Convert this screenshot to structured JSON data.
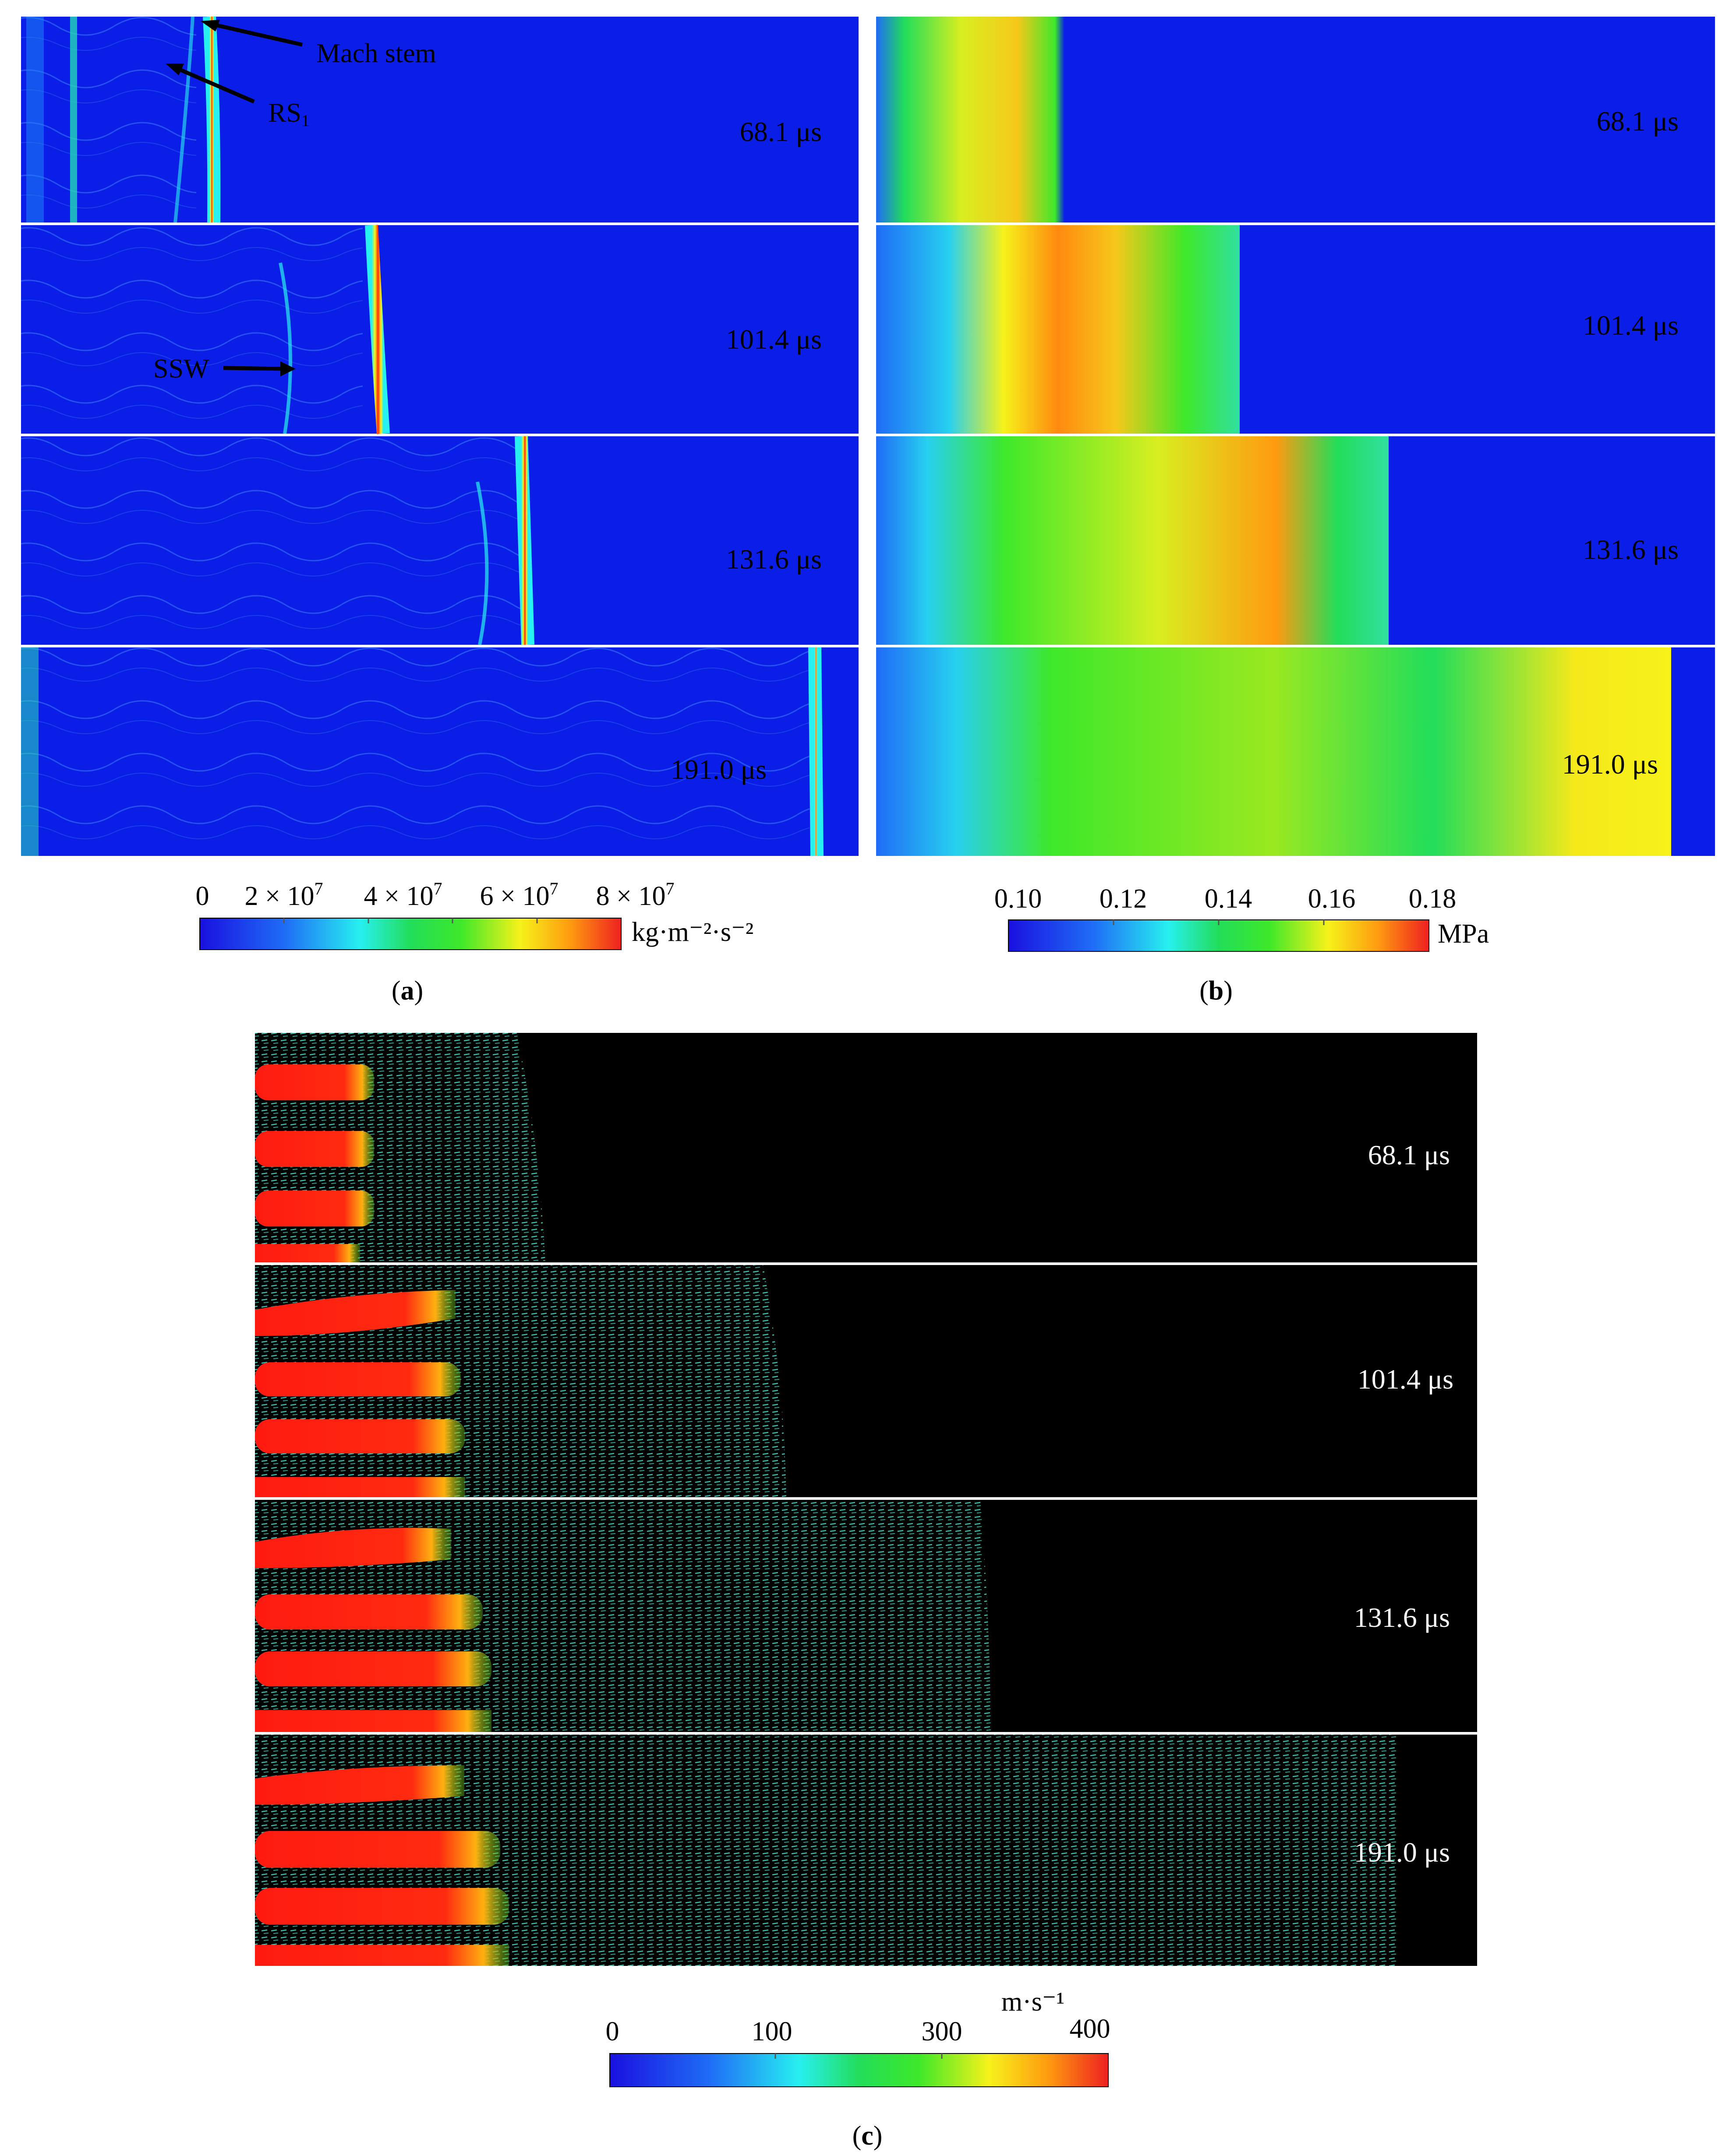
{
  "figure": {
    "panel_a": {
      "caption_letter": "a",
      "annotations": {
        "mach_stem": "Mach stem",
        "rs": "RS",
        "rs_sub": "1",
        "ssw": "SSW"
      },
      "times": [
        "68.1 μs",
        "101.4 μs",
        "131.6 μs",
        "191.0 μs"
      ],
      "colorbar": {
        "ticks": [
          "0",
          "2 × 10",
          "4 × 10",
          "6 × 10",
          "8 × 10"
        ],
        "tick_exponent": "7",
        "unit": "kg·m⁻²·s⁻²"
      }
    },
    "panel_b": {
      "caption_letter": "b",
      "times": [
        "68.1 μs",
        "101.4 μs",
        "131.6 μs",
        "191.0 μs"
      ],
      "colorbar": {
        "ticks": [
          "0.10",
          "0.12",
          "0.14",
          "0.16",
          "0.18"
        ],
        "unit": "MPa"
      }
    },
    "panel_c": {
      "caption_letter": "c",
      "times": [
        "68.1 μs",
        "101.4 μs",
        "131.6 μs",
        "191.0 μs"
      ],
      "colorbar": {
        "ticks": [
          "0",
          "100",
          "300",
          "400"
        ],
        "unit": "m·s⁻¹"
      }
    },
    "colors": {
      "field_blue": "#0a1ee8",
      "jet_red": "#ff2a10",
      "jet_green": "#22dd22",
      "jet_yellow": "#f6f21a",
      "jet_cyan": "#27f0f0",
      "velocity_background": "#000000",
      "velocity_vectors": "#3fd0c0"
    }
  }
}
